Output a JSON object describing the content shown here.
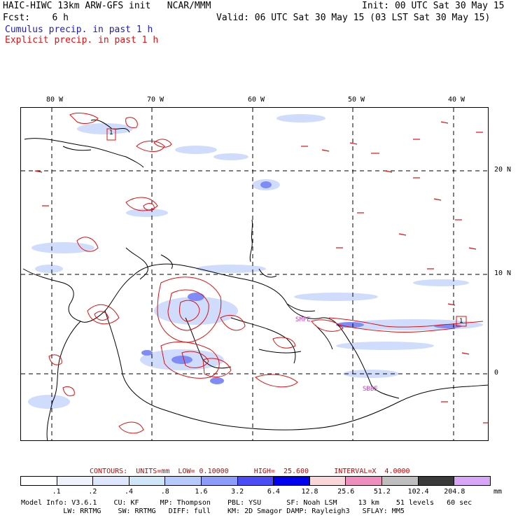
{
  "header": {
    "title": "HAIC-HIWC 13km ARW-GFS init   NCAR/MMM",
    "init": "Init: 00 UTC Sat 30 May 15",
    "fcst": "Fcst:    6 h",
    "valid": "Valid: 06 UTC Sat 30 May 15 (03 LST Sat 30 May 15)",
    "cumulus_label": "Cumulus precip. in past 1 h",
    "explicit_label": "Explicit precip. in past 1 h",
    "cumulus_color": "#1a1acc",
    "explicit_color": "#e01010"
  },
  "map": {
    "lon_labels": [
      "80 W",
      "70 W",
      "60 W",
      "50 W",
      "40 W"
    ],
    "lat_labels": [
      "20 N",
      "10 N",
      "0"
    ],
    "place_labels": [
      "SMPE",
      "SBBE"
    ],
    "place_color": "#cc33cc",
    "box_labels": [
      "1",
      "1"
    ]
  },
  "contours": {
    "text": "CONTOURS:  UNITS=mm  LOW= 0.10000      HIGH=  25.600      INTERVAL=X  4.0000",
    "color": "#cc0000"
  },
  "colorbar": {
    "labels": [
      ".1",
      ".2",
      ".4",
      ".8",
      "1.6",
      "3.2",
      "6.4",
      "12.8",
      "25.6",
      "51.2",
      "102.4",
      "204.8"
    ],
    "units": "mm",
    "colors": [
      "#ffffff",
      "#eef3fb",
      "#dde6fa",
      "#cfe6f6",
      "#b5c9fb",
      "#8c9cf9",
      "#4b4cf6",
      "#0000ee",
      "#f9d6d8",
      "#ee8ebe",
      "#bebebe",
      "#3a3a3a",
      "#d8a6f6"
    ]
  },
  "footer": {
    "line1": "Model Info: V3.6.1    CU: KF     MP: Thompson    PBL: YSU      SF: Noah LSM     13 km    51 levels   60 sec",
    "line2": "          LW: RRTMG    SW: RRTMG   DIFF: full    KM: 2D Smagor DAMP: Rayleigh3   SFLAY: MM5"
  }
}
